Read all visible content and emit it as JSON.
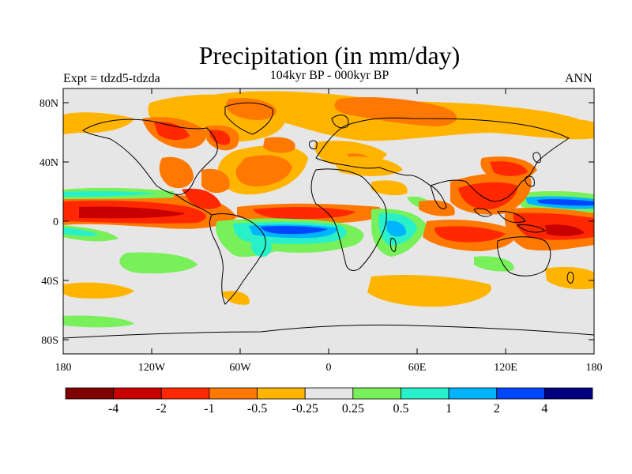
{
  "title": "Precipitation (in mm/day)",
  "subtitle_left": "Expt = tdzd5-tdzda",
  "subtitle_center": "104kyr BP - 000kyr BP",
  "subtitle_right": "ANN",
  "lat_ticks": [
    "80N",
    "40N",
    "0",
    "40S",
    "80S"
  ],
  "lon_ticks": [
    "180",
    "120W",
    "60W",
    "0",
    "60E",
    "120E",
    "180"
  ],
  "colorbar": {
    "colors": [
      "#800000",
      "#c80000",
      "#ff2800",
      "#ff7800",
      "#ffb400",
      "#e6e6e6",
      "#78f05a",
      "#28f0c8",
      "#00b4ff",
      "#0046ff",
      "#000080"
    ],
    "labels": [
      "-4",
      "-2",
      "-1",
      "-0.5",
      "-0.25",
      "0.25",
      "0.5",
      "1",
      "2",
      "4"
    ]
  }
}
